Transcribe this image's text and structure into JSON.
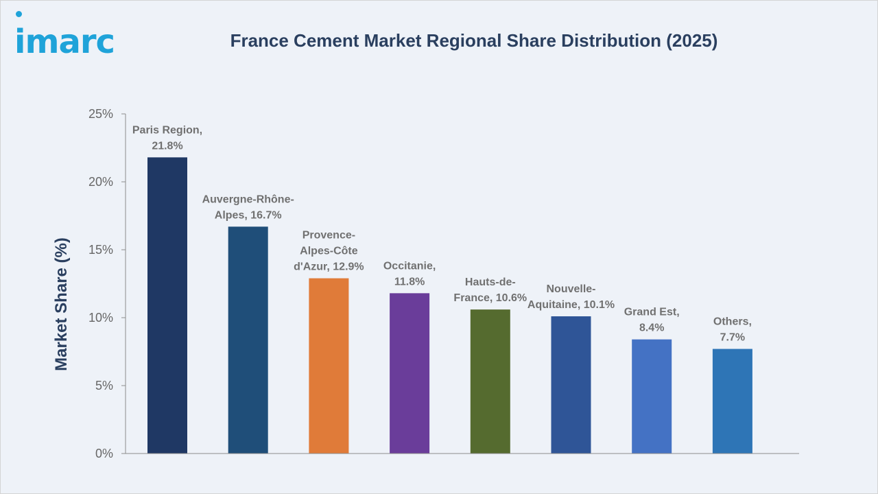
{
  "brand": {
    "logo_text": "imarc",
    "color": "#1fa3d9"
  },
  "chart_data": {
    "type": "bar",
    "title": "France Cement Market Regional Share Distribution (2025)",
    "xlabel": "",
    "ylabel": "Market Share (%)",
    "ylim": [
      0,
      25
    ],
    "yticks": [
      0,
      5,
      10,
      15,
      20,
      25
    ],
    "ytick_labels": [
      "0%",
      "5%",
      "10%",
      "15%",
      "20%",
      "25%"
    ],
    "grid": false,
    "categories": [
      "Paris Region",
      "Auvergne-Rhône-Alpes",
      "Provence-Alpes-Côte d'Azur",
      "Occitanie",
      "Hauts-de-France",
      "Nouvelle-Aquitaine",
      "Grand Est",
      "Others"
    ],
    "values": [
      21.8,
      16.7,
      12.9,
      11.8,
      10.6,
      10.1,
      8.4,
      7.7
    ],
    "data_labels": [
      [
        "Paris Region,",
        "21.8%"
      ],
      [
        "Auvergne-Rhône-",
        "Alpes, 16.7%"
      ],
      [
        "Provence-",
        "Alpes-Côte",
        "d'Azur, 12.9%"
      ],
      [
        "Occitanie,",
        "11.8%"
      ],
      [
        "Hauts-de-",
        "France, 10.6%"
      ],
      [
        "Nouvelle-",
        "Aquitaine, 10.1%"
      ],
      [
        "Grand Est,",
        "8.4%"
      ],
      [
        "Others,",
        "7.7%"
      ]
    ],
    "colors": [
      "#1f3864",
      "#1f4e79",
      "#e07b39",
      "#6a3d9a",
      "#556b2f",
      "#2f5597",
      "#4472c4",
      "#2e75b6"
    ]
  }
}
